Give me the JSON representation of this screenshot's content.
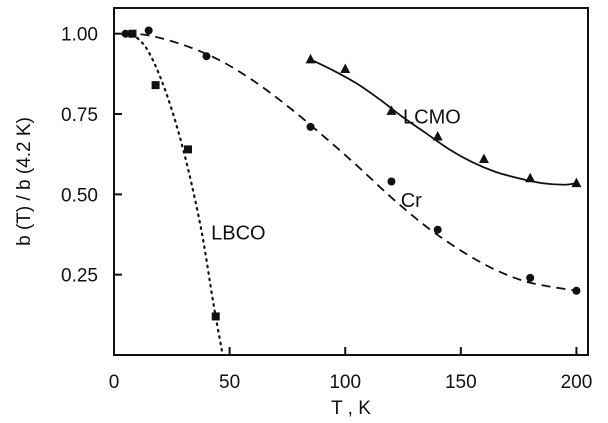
{
  "chart_data": {
    "type": "line",
    "title": "",
    "xlabel": "T , K",
    "ylabel": "b (T) / b (4.2 K)",
    "xlim": [
      0,
      205
    ],
    "ylim": [
      0,
      1.08
    ],
    "grid": false,
    "x_ticks": [
      {
        "value": 0,
        "label": "0"
      },
      {
        "value": 50,
        "label": "50"
      },
      {
        "value": 100,
        "label": "100"
      },
      {
        "value": 150,
        "label": "150"
      },
      {
        "value": 200,
        "label": "200"
      }
    ],
    "y_ticks": [
      {
        "value": 0.25,
        "label": "0.25"
      },
      {
        "value": 0.5,
        "label": "0.50"
      },
      {
        "value": 0.75,
        "label": "0.75"
      },
      {
        "value": 1.0,
        "label": "1.00"
      }
    ],
    "series": [
      {
        "name": "LCMO",
        "marker": "triangle",
        "line_style": "solid",
        "label_at": [
          125,
          0.72
        ],
        "points": [
          [
            85,
            0.92
          ],
          [
            100,
            0.89
          ],
          [
            120,
            0.76
          ],
          [
            140,
            0.68
          ],
          [
            160,
            0.61
          ],
          [
            180,
            0.55
          ],
          [
            200,
            0.535
          ]
        ],
        "fit": [
          [
            85,
            0.92
          ],
          [
            95,
            0.885
          ],
          [
            105,
            0.845
          ],
          [
            115,
            0.795
          ],
          [
            125,
            0.74
          ],
          [
            135,
            0.69
          ],
          [
            145,
            0.64
          ],
          [
            155,
            0.6
          ],
          [
            165,
            0.57
          ],
          [
            175,
            0.55
          ],
          [
            185,
            0.535
          ],
          [
            195,
            0.53
          ],
          [
            200,
            0.535
          ]
        ]
      },
      {
        "name": "Cr",
        "marker": "circle",
        "line_style": "dashed",
        "label_at": [
          124,
          0.46
        ],
        "points": [
          [
            5,
            1.0
          ],
          [
            15,
            1.01
          ],
          [
            40,
            0.93
          ],
          [
            85,
            0.71
          ],
          [
            120,
            0.54
          ],
          [
            140,
            0.39
          ],
          [
            180,
            0.24
          ],
          [
            200,
            0.2
          ]
        ],
        "fit": [
          [
            5,
            1.0
          ],
          [
            15,
            0.995
          ],
          [
            30,
            0.965
          ],
          [
            45,
            0.92
          ],
          [
            60,
            0.855
          ],
          [
            75,
            0.775
          ],
          [
            90,
            0.685
          ],
          [
            105,
            0.59
          ],
          [
            120,
            0.49
          ],
          [
            135,
            0.4
          ],
          [
            150,
            0.325
          ],
          [
            165,
            0.265
          ],
          [
            180,
            0.225
          ],
          [
            200,
            0.2
          ]
        ]
      },
      {
        "name": "LBCO",
        "marker": "square",
        "line_style": "dotted",
        "label_at": [
          42,
          0.36
        ],
        "points": [
          [
            8,
            1.0
          ],
          [
            18,
            0.84
          ],
          [
            32,
            0.64
          ],
          [
            44,
            0.12
          ]
        ],
        "fit": [
          [
            8,
            1.0
          ],
          [
            14,
            0.955
          ],
          [
            20,
            0.865
          ],
          [
            26,
            0.74
          ],
          [
            32,
            0.58
          ],
          [
            38,
            0.38
          ],
          [
            43,
            0.16
          ],
          [
            47,
            0.0
          ]
        ]
      }
    ]
  }
}
